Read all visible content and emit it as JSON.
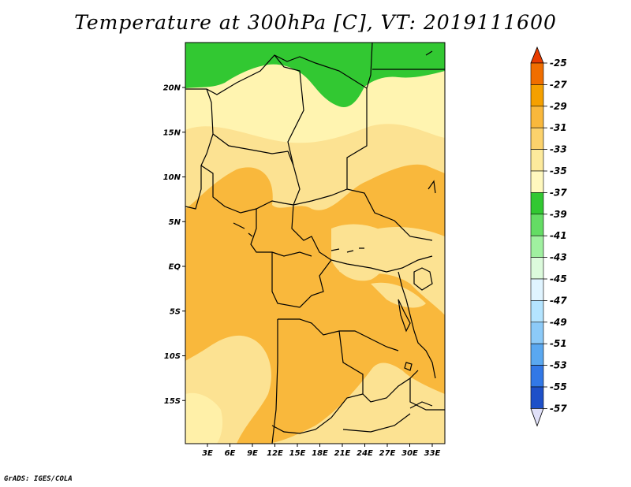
{
  "title": "Temperature at 300hPa [C], VT: 2019111600",
  "credit": "GrADS: IGES/COLA",
  "map": {
    "lat_labels": [
      {
        "text": "20N",
        "lat": 20
      },
      {
        "text": "15N",
        "lat": 15
      },
      {
        "text": "10N",
        "lat": 10
      },
      {
        "text": "5N",
        "lat": 5
      },
      {
        "text": "EQ",
        "lat": 0
      },
      {
        "text": "5S",
        "lat": -5
      },
      {
        "text": "10S",
        "lat": -10
      },
      {
        "text": "15S",
        "lat": -15
      }
    ],
    "lon_labels": [
      {
        "text": "3E",
        "lon": 3
      },
      {
        "text": "6E",
        "lon": 6
      },
      {
        "text": "9E",
        "lon": 9
      },
      {
        "text": "12E",
        "lon": 12
      },
      {
        "text": "15E",
        "lon": 15
      },
      {
        "text": "18E",
        "lon": 18
      },
      {
        "text": "21E",
        "lon": 21
      },
      {
        "text": "24E",
        "lon": 24
      },
      {
        "text": "27E",
        "lon": 27
      },
      {
        "text": "30E",
        "lon": 30
      },
      {
        "text": "33E",
        "lon": 33
      }
    ]
  },
  "legend": {
    "labels": [
      "-25",
      "-27",
      "-29",
      "-31",
      "-33",
      "-35",
      "-37",
      "-39",
      "-41",
      "-43",
      "-45",
      "-47",
      "-49",
      "-51",
      "-53",
      "-55",
      "-57"
    ],
    "colors": [
      "#e83c00",
      "#f06e00",
      "#f5a000",
      "#f9b83c",
      "#fcd26c",
      "#fdea9c",
      "#fff8be",
      "#32c832",
      "#64dc64",
      "#a0f0a0",
      "#dcfadc",
      "#e0f4ff",
      "#b4e4ff",
      "#8ccaf8",
      "#5aa8f0",
      "#3278e6",
      "#1e50c8",
      "#1432a0",
      "#0a1478"
    ],
    "top_arrow_color": "#e83c00",
    "bottom_arrow_color": "#e0e0f8"
  }
}
